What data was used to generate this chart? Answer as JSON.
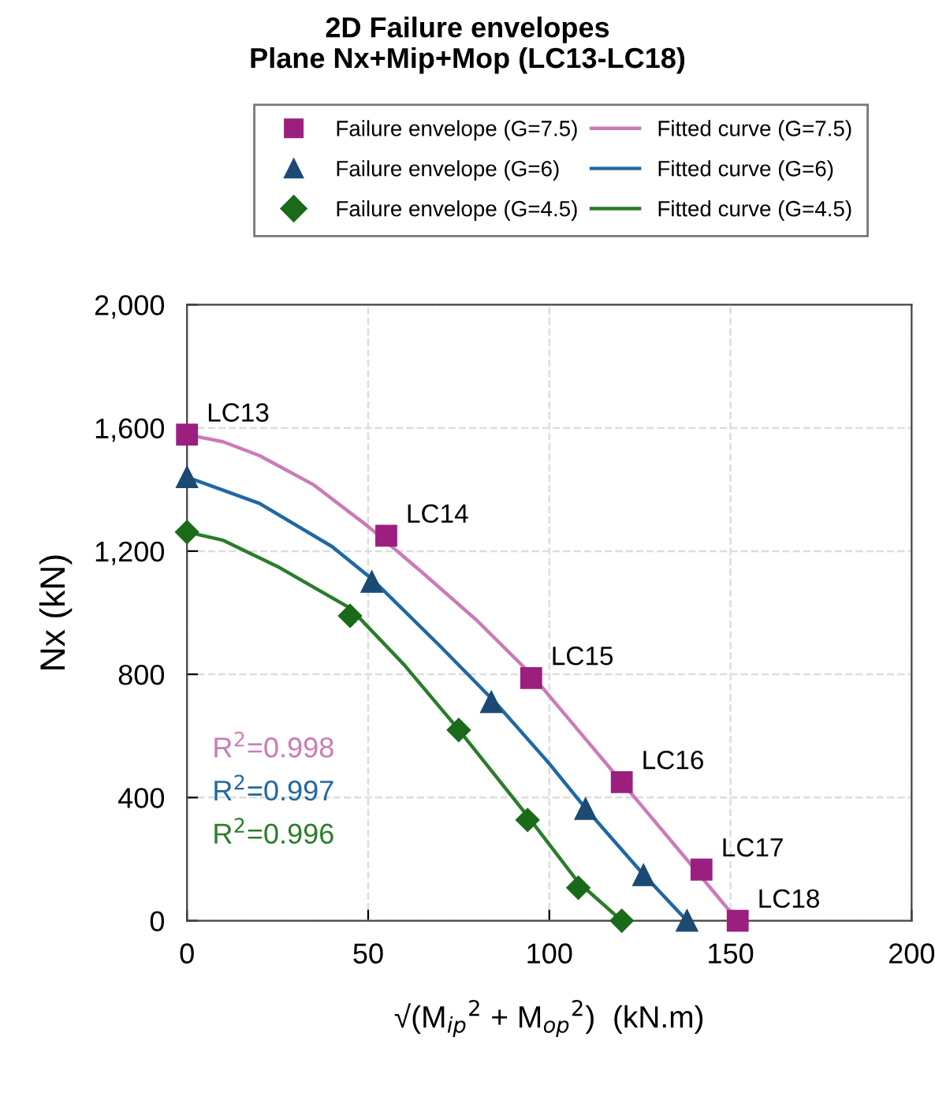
{
  "chart_data": {
    "type": "scatter",
    "title": "2D Failure envelopes\nPlane Nx+Mip+Mop (LC13-LC18)",
    "xlabel": "√(M$_{ip}$$^{2}$ + M$_{op}$$^{2}$)  (kN.m)",
    "ylabel": "Nx (kN)",
    "xlim": [
      0,
      200
    ],
    "ylim": [
      0,
      2000
    ],
    "xticks": [
      0,
      50,
      100,
      150,
      200
    ],
    "yticks": [
      0,
      400,
      800,
      {
        "value": 1200,
        "label": "1,200"
      },
      {
        "value": 1600,
        "label": "1,600"
      },
      {
        "value": 2000,
        "label": "2,000"
      }
    ],
    "grid": true,
    "legend": "top",
    "series": [
      {
        "name": "Failure envelope (G=7.5)",
        "marker": "square",
        "color": "#9c1f80",
        "x": [
          0,
          55,
          95,
          120,
          142,
          152
        ],
        "values": [
          1578,
          1250,
          788,
          450,
          166,
          0
        ]
      },
      {
        "name": "Fitted curve (G=7.5)",
        "type": "line",
        "marker": "none",
        "color": "#cc7ab8",
        "x": [
          0,
          10,
          20,
          35,
          50,
          65,
          80,
          95,
          110,
          125,
          140,
          152
        ],
        "values": [
          1578,
          1555,
          1510,
          1415,
          1280,
          1130,
          975,
          800,
          590,
          380,
          170,
          0
        ]
      },
      {
        "name": "Failure envelope (G=6)",
        "marker": "triangle",
        "color": "#1b4a72",
        "x": [
          0,
          51,
          84,
          110,
          126,
          138
        ],
        "values": [
          1440,
          1100,
          710,
          363,
          148,
          0
        ]
      },
      {
        "name": "Fitted curve (G=6)",
        "type": "line",
        "marker": "none",
        "color": "#1f68a3",
        "x": [
          0,
          20,
          40,
          51,
          70,
          85,
          100,
          110,
          126,
          138
        ],
        "values": [
          1440,
          1355,
          1215,
          1110,
          890,
          710,
          510,
          365,
          150,
          0
        ]
      },
      {
        "name": "Failure envelope (G=4.5)",
        "marker": "diamond",
        "color": "#1a6a1a",
        "x": [
          0,
          45,
          75,
          94,
          108,
          120
        ],
        "values": [
          1262,
          990,
          619,
          327,
          107,
          0
        ]
      },
      {
        "name": "Fitted curve (G=4.5)",
        "type": "line",
        "marker": "none",
        "color": "#2a7d2a",
        "x": [
          0,
          10,
          25,
          45,
          60,
          75,
          94,
          108,
          120
        ],
        "values": [
          1262,
          1235,
          1150,
          1015,
          830,
          620,
          340,
          125,
          0
        ]
      }
    ],
    "annotations": [
      {
        "text": "LC13",
        "x": 0,
        "y": 1578
      },
      {
        "text": "LC14",
        "x": 55,
        "y": 1250
      },
      {
        "text": "LC15",
        "x": 95,
        "y": 788
      },
      {
        "text": "LC16",
        "x": 120,
        "y": 450
      },
      {
        "text": "LC17",
        "x": 142,
        "y": 166
      },
      {
        "text": "LC18",
        "x": 152,
        "y": 0
      },
      "R$^{2}$=0.998",
      "R$^{2}$=0.997",
      "R$^{2}$=0.996"
    ]
  }
}
